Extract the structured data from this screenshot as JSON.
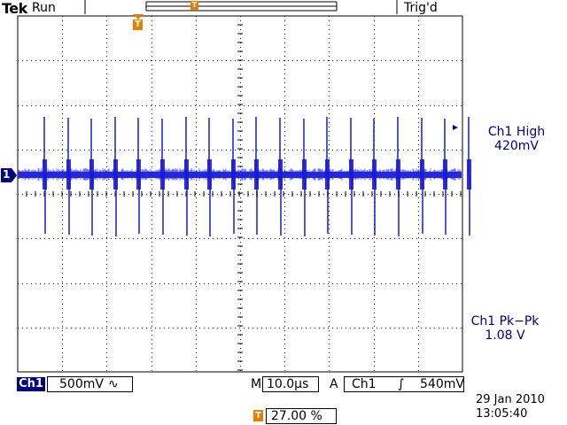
{
  "header": {
    "brand": "Tek",
    "run_state": "Run",
    "trigger_state": "Trig'd"
  },
  "markers": {
    "trigger_marker": "T",
    "channel_marker": "1"
  },
  "measurements": [
    {
      "title": "Ch1 High",
      "value": "420mV"
    },
    {
      "title": "Ch1 Pk−Pk",
      "value": "1.08 V"
    }
  ],
  "status": {
    "channel": "Ch1",
    "scale": "500mV",
    "coupling_symbol": "∿",
    "mode": "M",
    "timebase": "10.0µs",
    "trigger_label": "A",
    "trigger_source": "Ch1",
    "slope_symbol": "∫",
    "trigger_level": "540mV",
    "position_marker": "T",
    "position": "27.00 %",
    "date": "29 Jan  2010",
    "time": "13:05:40"
  },
  "colors": {
    "trace": "#1a1ad8",
    "text": "#000080",
    "trigger": "#e67e00",
    "grid": "#000000"
  },
  "trace": {
    "spike_count": 19
  }
}
